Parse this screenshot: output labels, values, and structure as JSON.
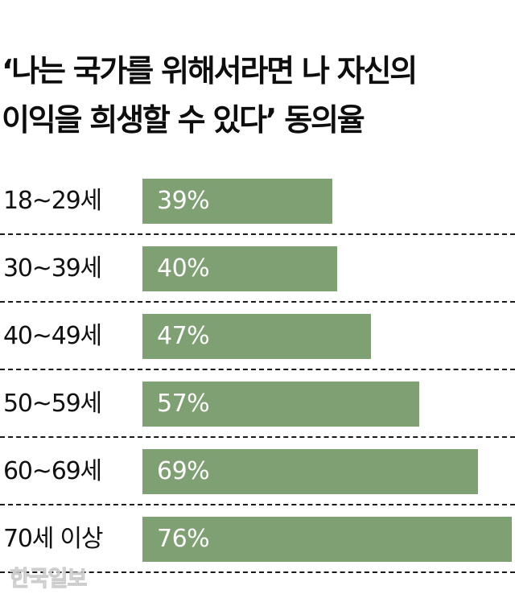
{
  "header": {
    "title_line1": "‘나는 국가를 위해서라면 나 자신의",
    "title_line2": "이익을 희생할 수 있다’ 동의율"
  },
  "chart_data": {
    "type": "bar",
    "orientation": "horizontal",
    "title": "‘나는 국가를 위해서라면 나 자신의 이익을 희생할 수 있다’ 동의율",
    "xlabel": "",
    "ylabel": "",
    "categories": [
      "18~29세",
      "30~39세",
      "40~49세",
      "50~59세",
      "60~69세",
      "70세 이상"
    ],
    "values": [
      39,
      40,
      47,
      57,
      69,
      76
    ],
    "value_labels": [
      "39%",
      "40%",
      "47%",
      "57%",
      "69%",
      "76%"
    ],
    "unit": "%",
    "xlim": [
      0,
      76
    ],
    "grid": false,
    "row_separators": "dashed",
    "legend": null,
    "bar_color": "#7ea072"
  },
  "rows": [
    {
      "label": "18~29세",
      "value": 39,
      "value_label": "39%"
    },
    {
      "label": "30~39세",
      "value": 40,
      "value_label": "40%"
    },
    {
      "label": "40~49세",
      "value": 47,
      "value_label": "47%"
    },
    {
      "label": "50~59세",
      "value": 57,
      "value_label": "57%"
    },
    {
      "label": "60~69세",
      "value": 69,
      "value_label": "69%"
    },
    {
      "label": "70세 이상",
      "value": 76,
      "value_label": "76%"
    }
  ],
  "colors": {
    "bar": "#7ea072",
    "bar_text": "#ffffff",
    "text": "#111111",
    "separator": "#1a1a1a"
  },
  "watermark": {
    "text": "한국일보"
  }
}
